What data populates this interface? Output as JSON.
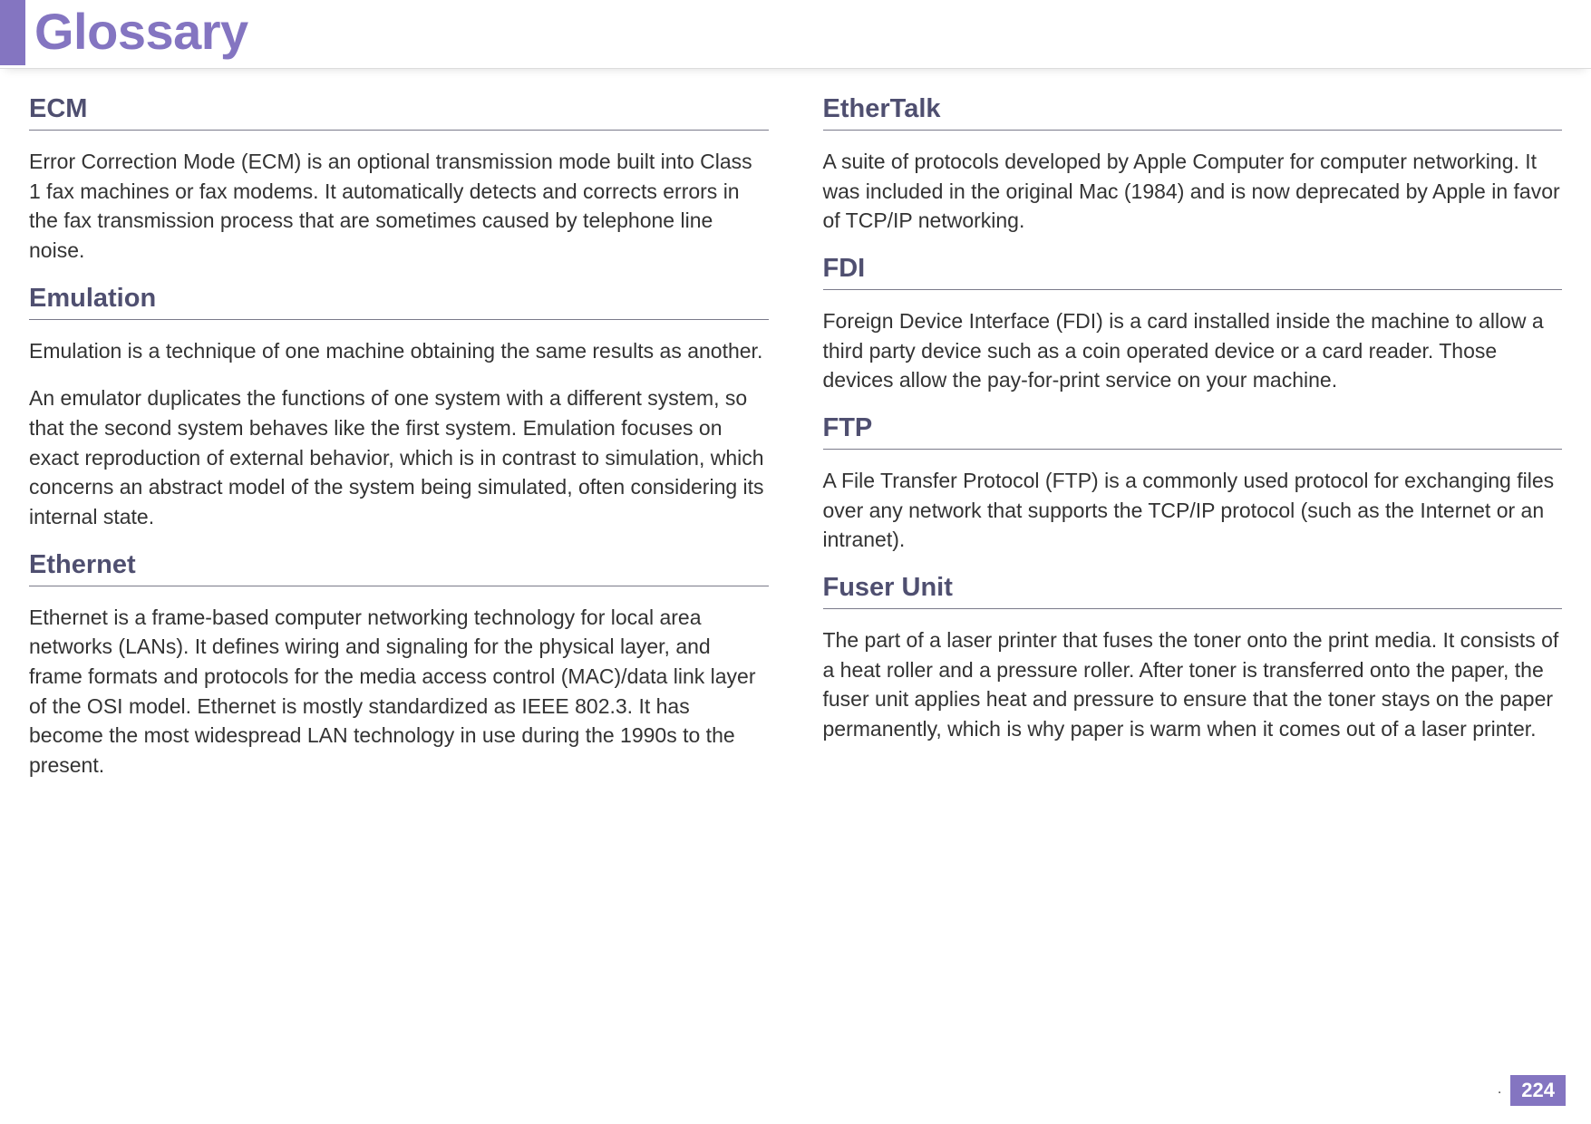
{
  "header": {
    "title": "Glossary",
    "accent_color": "#8475c1"
  },
  "footer": {
    "page_number": "224"
  },
  "left_column": [
    {
      "term": "ECM",
      "defs": [
        "Error Correction Mode (ECM) is an optional transmission mode built into Class 1 fax machines or fax modems. It automatically detects and corrects errors in the fax transmission process that are sometimes caused by telephone line noise."
      ]
    },
    {
      "term": "Emulation",
      "defs": [
        "Emulation is a technique of one machine obtaining the same results as another.",
        "An emulator duplicates the functions of one system with a different system, so that the second system behaves like the first system. Emulation focuses on exact reproduction of external behavior, which is in contrast to simulation, which concerns an abstract model of the system being simulated, often considering its internal state."
      ]
    },
    {
      "term": "Ethernet",
      "defs": [
        "Ethernet is a frame-based computer networking technology for local area networks (LANs). It defines wiring and signaling for the physical layer, and frame formats and protocols for the media access control (MAC)/data link layer of the OSI model. Ethernet is mostly standardized as IEEE 802.3. It has become the most widespread LAN technology in use during the 1990s to the present."
      ]
    }
  ],
  "right_column": [
    {
      "term": "EtherTalk",
      "defs": [
        "A suite of protocols developed by Apple Computer for computer networking. It was included in the original Mac (1984) and is now deprecated by Apple in favor of TCP/IP networking."
      ]
    },
    {
      "term": "FDI",
      "defs": [
        "Foreign Device Interface (FDI) is a card installed inside the machine to allow a third party device such as a coin operated device or a card reader. Those devices allow the pay-for-print service on your machine."
      ]
    },
    {
      "term": "FTP",
      "defs": [
        "A File Transfer Protocol (FTP) is a commonly used protocol for exchanging files over any network that supports the TCP/IP protocol (such as the Internet or an intranet)."
      ]
    },
    {
      "term": "Fuser Unit",
      "defs": [
        "The part of a laser printer that fuses the toner onto the print media. It consists of a heat roller and a pressure roller. After toner is transferred onto the paper, the fuser unit applies heat and pressure to ensure that the toner stays on the paper permanently, which is why paper is warm when it comes out of a laser printer."
      ]
    }
  ]
}
